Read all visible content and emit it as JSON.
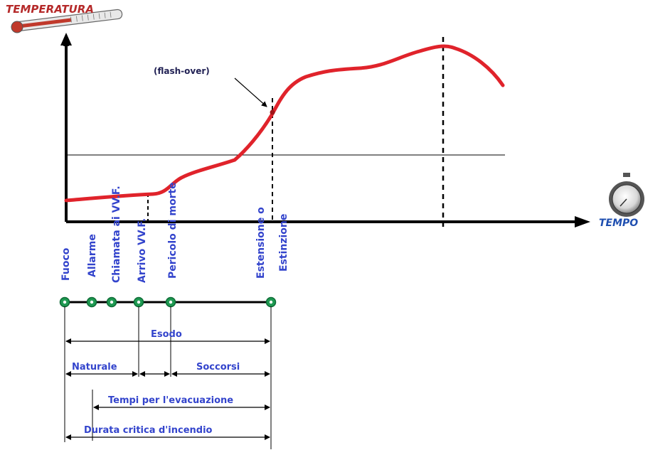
{
  "axes": {
    "y_title": "TEMPERATURA",
    "x_title": "TEMPO"
  },
  "annotation": "(flash-over)",
  "events": [
    "Fuoco",
    "Allarme",
    "Chiamata ai VV.F.",
    "Arrivo VV.F.",
    "Pericolo di morte",
    "Estensione o",
    "Estinzione"
  ],
  "intervals": {
    "esodo": "Esodo",
    "naturale": "Naturale",
    "soccorsi": "Soccorsi",
    "evacuazione": "Tempi per l'evacuazione",
    "durata": "Durata critica d'incendio"
  },
  "colors": {
    "curve": "#e0232b",
    "label": "#3344cc",
    "title": "#b52a2a",
    "node": "#1f9a52"
  },
  "icons": {
    "thermometer": "thermometer-icon",
    "stopwatch": "stopwatch-icon"
  }
}
